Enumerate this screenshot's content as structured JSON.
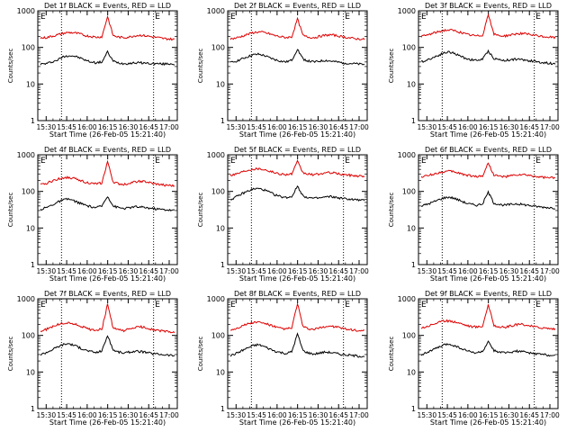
{
  "chart_data": [
    {
      "type": "line",
      "title": "Det 1f BLACK = Events, RED = LLD",
      "xlabel": "Start Time (26-Feb-05 15:21:40)",
      "ylabel": "Counts/sec",
      "x_ticks": [
        "15:30",
        "15:45",
        "16:00",
        "16:15",
        "16:30",
        "16:45",
        "17:00"
      ],
      "y_ticks": [
        "1",
        "10",
        "100",
        "1000"
      ],
      "markers": [
        "E",
        "E"
      ],
      "ylim": [
        1,
        1000
      ],
      "yscale": "log",
      "series": [
        {
          "color": "#000000",
          "values": [
            35,
            36,
            40,
            45,
            55,
            60,
            58,
            52,
            45,
            40,
            38,
            40,
            75,
            42,
            38,
            36,
            37,
            38,
            38,
            37,
            36,
            36,
            35,
            36,
            35
          ]
        },
        {
          "color": "#dd0000",
          "values": [
            180,
            185,
            200,
            220,
            240,
            255,
            250,
            235,
            210,
            200,
            190,
            195,
            700,
            210,
            190,
            185,
            195,
            210,
            215,
            205,
            195,
            185,
            175,
            170,
            165
          ]
        }
      ]
    },
    {
      "type": "line",
      "title": "Det 2f BLACK = Events, RED = LLD",
      "xlabel": "Start Time (26-Feb-05 15:21:40)",
      "ylabel": "Counts/sec",
      "x_ticks": [
        "15:30",
        "15:45",
        "16:00",
        "16:15",
        "16:30",
        "16:45",
        "17:00"
      ],
      "y_ticks": [
        "1",
        "10",
        "100",
        "1000"
      ],
      "markers": [
        "E",
        "E"
      ],
      "ylim": [
        1,
        1000
      ],
      "yscale": "log",
      "series": [
        {
          "color": "#000000",
          "values": [
            38,
            42,
            48,
            55,
            62,
            65,
            60,
            52,
            46,
            42,
            40,
            45,
            90,
            48,
            42,
            40,
            42,
            44,
            42,
            40,
            38,
            37,
            36,
            35,
            34
          ]
        },
        {
          "color": "#dd0000",
          "values": [
            170,
            180,
            200,
            225,
            250,
            265,
            255,
            235,
            210,
            195,
            185,
            195,
            600,
            210,
            190,
            185,
            200,
            215,
            220,
            210,
            195,
            185,
            175,
            170,
            165
          ]
        }
      ]
    },
    {
      "type": "line",
      "title": "Det 3f BLACK = Events, RED = LLD",
      "xlabel": "Start Time (26-Feb-05 15:21:40)",
      "ylabel": "Counts/sec",
      "x_ticks": [
        "15:30",
        "15:45",
        "16:00",
        "16:15",
        "16:30",
        "16:45",
        "17:00"
      ],
      "y_ticks": [
        "1",
        "10",
        "100",
        "1000"
      ],
      "markers": [
        "E",
        "E"
      ],
      "ylim": [
        1,
        1000
      ],
      "yscale": "log",
      "series": [
        {
          "color": "#000000",
          "values": [
            40,
            45,
            52,
            60,
            70,
            75,
            68,
            58,
            50,
            46,
            44,
            48,
            80,
            50,
            46,
            44,
            46,
            48,
            46,
            44,
            42,
            40,
            38,
            37,
            36
          ]
        },
        {
          "color": "#dd0000",
          "values": [
            200,
            215,
            240,
            265,
            290,
            300,
            285,
            260,
            230,
            215,
            205,
            215,
            800,
            230,
            210,
            205,
            220,
            235,
            240,
            230,
            215,
            205,
            195,
            190,
            185
          ]
        }
      ]
    },
    {
      "type": "line",
      "title": "Det 4f BLACK = Events, RED = LLD",
      "xlabel": "Start Time (26-Feb-05 15:21:40)",
      "ylabel": "Counts/sec",
      "x_ticks": [
        "15:30",
        "15:45",
        "16:00",
        "16:15",
        "16:30",
        "16:45",
        "17:00"
      ],
      "y_ticks": [
        "1",
        "10",
        "100",
        "1000"
      ],
      "markers": [
        "E",
        "E"
      ],
      "ylim": [
        1,
        1000
      ],
      "yscale": "log",
      "series": [
        {
          "color": "#000000",
          "values": [
            32,
            36,
            42,
            50,
            58,
            62,
            55,
            48,
            42,
            38,
            36,
            40,
            75,
            40,
            36,
            34,
            36,
            38,
            37,
            36,
            34,
            33,
            32,
            31,
            30
          ]
        },
        {
          "color": "#dd0000",
          "values": [
            150,
            165,
            190,
            215,
            235,
            240,
            225,
            205,
            180,
            165,
            160,
            170,
            650,
            180,
            160,
            155,
            170,
            185,
            190,
            180,
            165,
            155,
            150,
            145,
            140
          ]
        }
      ]
    },
    {
      "type": "line",
      "title": "Det 5f BLACK = Events, RED = LLD",
      "xlabel": "Start Time (26-Feb-05 15:21:40)",
      "ylabel": "Counts/sec",
      "x_ticks": [
        "15:30",
        "15:45",
        "16:00",
        "16:15",
        "16:30",
        "16:45",
        "17:00"
      ],
      "y_ticks": [
        "1",
        "10",
        "100",
        "1000"
      ],
      "markers": [
        "E",
        "E"
      ],
      "ylim": [
        1,
        1000
      ],
      "yscale": "log",
      "series": [
        {
          "color": "#000000",
          "values": [
            60,
            70,
            85,
            100,
            115,
            120,
            110,
            95,
            80,
            72,
            68,
            72,
            140,
            75,
            68,
            64,
            66,
            70,
            72,
            68,
            64,
            62,
            60,
            58,
            56
          ]
        },
        {
          "color": "#dd0000",
          "values": [
            280,
            300,
            340,
            380,
            410,
            420,
            400,
            360,
            320,
            300,
            290,
            300,
            650,
            320,
            295,
            285,
            300,
            320,
            325,
            310,
            290,
            280,
            270,
            265,
            260
          ]
        }
      ]
    },
    {
      "type": "line",
      "title": "Det 6f BLACK = Events, RED = LLD",
      "xlabel": "Start Time (26-Feb-05 15:21:40)",
      "ylabel": "Counts/sec",
      "x_ticks": [
        "15:30",
        "15:45",
        "16:00",
        "16:15",
        "16:30",
        "16:45",
        "17:00"
      ],
      "y_ticks": [
        "1",
        "10",
        "100",
        "1000"
      ],
      "markers": [
        "E",
        "E"
      ],
      "ylim": [
        1,
        1000
      ],
      "yscale": "log",
      "series": [
        {
          "color": "#000000",
          "values": [
            40,
            44,
            50,
            58,
            66,
            70,
            64,
            56,
            48,
            44,
            42,
            46,
            95,
            48,
            44,
            42,
            44,
            46,
            44,
            42,
            40,
            38,
            37,
            36,
            35
          ]
        },
        {
          "color": "#dd0000",
          "values": [
            250,
            265,
            290,
            320,
            345,
            355,
            340,
            310,
            280,
            265,
            255,
            265,
            600,
            280,
            260,
            250,
            265,
            280,
            285,
            275,
            260,
            250,
            240,
            235,
            230
          ]
        }
      ]
    },
    {
      "type": "line",
      "title": "Det 7f BLACK = Events, RED = LLD",
      "xlabel": "Start Time (26-Feb-05 15:21:40)",
      "ylabel": "Counts/sec",
      "x_ticks": [
        "15:30",
        "15:45",
        "16:00",
        "16:15",
        "16:30",
        "16:45",
        "17:00"
      ],
      "y_ticks": [
        "1",
        "10",
        "100",
        "1000"
      ],
      "markers": [
        "E",
        "E"
      ],
      "ylim": [
        1,
        1000
      ],
      "yscale": "log",
      "series": [
        {
          "color": "#000000",
          "values": [
            30,
            34,
            40,
            48,
            56,
            60,
            54,
            46,
            40,
            36,
            34,
            38,
            100,
            40,
            35,
            33,
            35,
            37,
            36,
            34,
            32,
            31,
            30,
            29,
            28
          ]
        },
        {
          "color": "#dd0000",
          "values": [
            130,
            145,
            170,
            195,
            215,
            220,
            205,
            185,
            160,
            145,
            140,
            150,
            700,
            160,
            140,
            135,
            150,
            165,
            170,
            160,
            145,
            135,
            130,
            125,
            120
          ]
        }
      ]
    },
    {
      "type": "line",
      "title": "Det 8f BLACK = Events, RED = LLD",
      "xlabel": "Start Time (26-Feb-05 15:21:40)",
      "ylabel": "Counts/sec",
      "x_ticks": [
        "15:30",
        "15:45",
        "16:00",
        "16:15",
        "16:30",
        "16:45",
        "17:00"
      ],
      "y_ticks": [
        "1",
        "10",
        "100",
        "1000"
      ],
      "markers": [
        "E",
        "E"
      ],
      "ylim": [
        1,
        1000
      ],
      "yscale": "log",
      "series": [
        {
          "color": "#000000",
          "values": [
            28,
            32,
            38,
            45,
            52,
            56,
            50,
            43,
            37,
            34,
            32,
            36,
            110,
            38,
            33,
            31,
            33,
            35,
            34,
            32,
            30,
            29,
            28,
            27,
            27
          ]
        },
        {
          "color": "#dd0000",
          "values": [
            140,
            155,
            180,
            205,
            225,
            230,
            215,
            195,
            170,
            155,
            150,
            160,
            750,
            170,
            150,
            145,
            160,
            175,
            180,
            170,
            155,
            145,
            140,
            135,
            130
          ]
        }
      ]
    },
    {
      "type": "line",
      "title": "Det 9f BLACK = Events, RED = LLD",
      "xlabel": "Start Time (26-Feb-05 15:21:40)",
      "ylabel": "Counts/sec",
      "x_ticks": [
        "15:30",
        "15:45",
        "16:00",
        "16:15",
        "16:30",
        "16:45",
        "17:00"
      ],
      "y_ticks": [
        "1",
        "10",
        "100",
        "1000"
      ],
      "markers": [
        "E",
        "E"
      ],
      "ylim": [
        1,
        1000
      ],
      "yscale": "log",
      "series": [
        {
          "color": "#000000",
          "values": [
            30,
            34,
            40,
            46,
            54,
            58,
            52,
            45,
            39,
            35,
            33,
            37,
            65,
            39,
            35,
            33,
            35,
            37,
            36,
            34,
            32,
            31,
            30,
            29,
            28
          ]
        },
        {
          "color": "#dd0000",
          "values": [
            160,
            175,
            200,
            225,
            245,
            250,
            235,
            215,
            190,
            175,
            170,
            180,
            700,
            190,
            170,
            165,
            180,
            195,
            200,
            190,
            175,
            165,
            160,
            155,
            150
          ]
        }
      ]
    }
  ]
}
